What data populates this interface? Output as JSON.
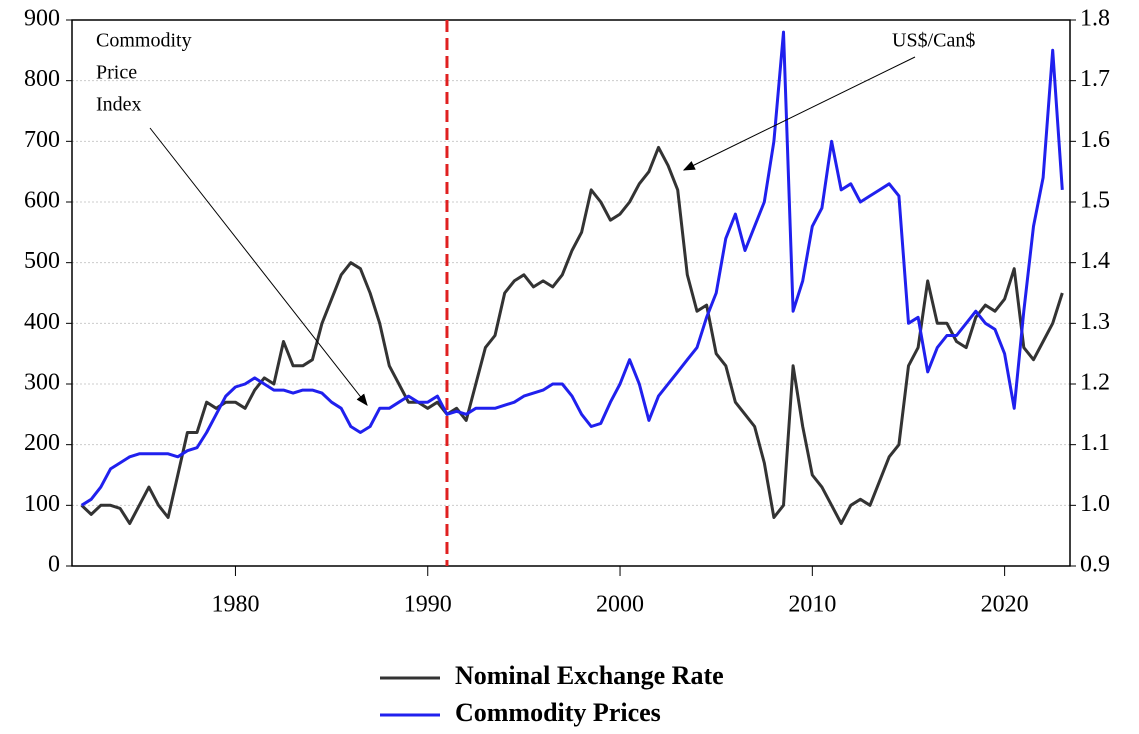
{
  "chart_data": {
    "type": "line",
    "annotations": [
      {
        "lines": [
          "Commodity",
          "Price",
          "Index"
        ]
      },
      {
        "lines": [
          "US$/Can$"
        ]
      }
    ],
    "x": [
      1972,
      1972.5,
      1973,
      1973.5,
      1974,
      1974.5,
      1975,
      1975.5,
      1976,
      1976.5,
      1977,
      1977.5,
      1978,
      1978.5,
      1979,
      1979.5,
      1980,
      1980.5,
      1981,
      1981.5,
      1982,
      1982.5,
      1983,
      1983.5,
      1984,
      1984.5,
      1985,
      1985.5,
      1986,
      1986.5,
      1987,
      1987.5,
      1988,
      1988.5,
      1989,
      1989.5,
      1990,
      1990.5,
      1991,
      1991.5,
      1992,
      1992.5,
      1993,
      1993.5,
      1994,
      1994.5,
      1995,
      1995.5,
      1996,
      1996.5,
      1997,
      1997.5,
      1998,
      1998.5,
      1999,
      1999.5,
      2000,
      2000.5,
      2001,
      2001.5,
      2002,
      2002.5,
      2003,
      2003.5,
      2004,
      2004.5,
      2005,
      2005.5,
      2006,
      2006.5,
      2007,
      2007.5,
      2008,
      2008.5,
      2009,
      2009.5,
      2010,
      2010.5,
      2011,
      2011.5,
      2012,
      2012.5,
      2013,
      2013.5,
      2014,
      2014.5,
      2015,
      2015.5,
      2016,
      2016.5,
      2017,
      2017.5,
      2018,
      2018.5,
      2019,
      2019.5,
      2020,
      2020.5,
      2021,
      2021.5,
      2022,
      2022.5,
      2023
    ],
    "series": [
      {
        "name": "Nominal Exchange Rate",
        "color": "#333333",
        "axis": "y2",
        "values": [
          1.0,
          0.985,
          1.0,
          1.0,
          0.995,
          0.97,
          1.0,
          1.03,
          1.0,
          0.98,
          1.05,
          1.12,
          1.12,
          1.17,
          1.16,
          1.17,
          1.17,
          1.16,
          1.19,
          1.21,
          1.2,
          1.27,
          1.23,
          1.23,
          1.24,
          1.3,
          1.34,
          1.38,
          1.4,
          1.39,
          1.35,
          1.3,
          1.23,
          1.2,
          1.17,
          1.17,
          1.16,
          1.17,
          1.15,
          1.16,
          1.14,
          1.2,
          1.26,
          1.28,
          1.35,
          1.37,
          1.38,
          1.36,
          1.37,
          1.36,
          1.38,
          1.42,
          1.45,
          1.52,
          1.5,
          1.47,
          1.48,
          1.5,
          1.53,
          1.55,
          1.59,
          1.56,
          1.52,
          1.38,
          1.32,
          1.33,
          1.25,
          1.23,
          1.17,
          1.15,
          1.13,
          1.07,
          0.98,
          1.0,
          1.23,
          1.13,
          1.05,
          1.03,
          1.0,
          0.97,
          1.0,
          1.01,
          1.0,
          1.04,
          1.08,
          1.1,
          1.23,
          1.26,
          1.37,
          1.3,
          1.3,
          1.27,
          1.26,
          1.31,
          1.33,
          1.32,
          1.34,
          1.39,
          1.26,
          1.24,
          1.27,
          1.3,
          1.35
        ]
      },
      {
        "name": "Commodity Prices",
        "color": "#2020ee",
        "values": [
          100,
          110,
          130,
          160,
          170,
          180,
          185,
          185,
          185,
          185,
          180,
          190,
          195,
          220,
          250,
          280,
          295,
          300,
          310,
          300,
          290,
          290,
          285,
          290,
          290,
          285,
          270,
          260,
          230,
          220,
          230,
          260,
          260,
          270,
          280,
          270,
          270,
          280,
          250,
          255,
          250,
          260,
          260,
          260,
          265,
          270,
          280,
          285,
          290,
          300,
          300,
          280,
          250,
          230,
          235,
          270,
          300,
          340,
          300,
          240,
          280,
          300,
          320,
          340,
          360,
          410,
          450,
          540,
          580,
          520,
          560,
          600,
          700,
          880,
          420,
          470,
          560,
          590,
          700,
          620,
          630,
          600,
          610,
          620,
          630,
          610,
          400,
          410,
          320,
          360,
          380,
          380,
          400,
          420,
          400,
          390,
          350,
          260,
          420,
          560,
          640,
          850,
          620
        ]
      }
    ],
    "xlim": [
      1971.5,
      2023.4
    ],
    "xticks": [
      1980,
      1990,
      2000,
      2010,
      2020
    ],
    "ylim": [
      0,
      900
    ],
    "yticks": [
      0,
      100,
      200,
      300,
      400,
      500,
      600,
      700,
      800,
      900
    ],
    "y2lim": [
      0.9,
      1.8
    ],
    "y2ticks": [
      0.9,
      {
        "value": 1,
        "label": "1.0"
      },
      1.1,
      1.2,
      1.3,
      1.4,
      1.5,
      1.6,
      1.7,
      1.8
    ],
    "vline": {
      "x": 1991,
      "color": "#e02020"
    },
    "grid": true
  }
}
